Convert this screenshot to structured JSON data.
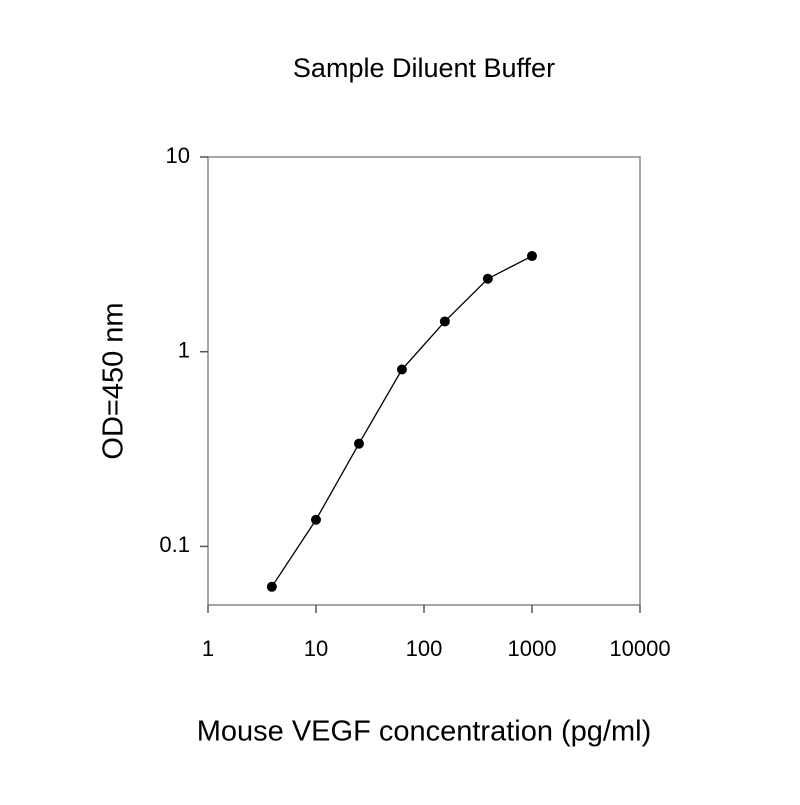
{
  "chart_data": {
    "type": "line",
    "title": "Sample Diluent Buffer",
    "x_label": "Mouse VEGF concentration (pg/ml)",
    "y_label": "OD=450 nm",
    "x": [
      3.9,
      10,
      25,
      62.5,
      156,
      390,
      1000
    ],
    "series": [
      {
        "name": "Sample Diluent Buffer",
        "color": "#000000",
        "values": [
          0.062,
          0.137,
          0.337,
          0.81,
          1.43,
          2.37,
          3.1
        ]
      }
    ],
    "xlim": [
      1,
      10000
    ],
    "ylim": [
      0.05,
      10
    ],
    "xticks": [
      1,
      10,
      100,
      1000,
      10000
    ],
    "yticks": [
      0.1,
      1,
      10
    ],
    "x_log": true,
    "y_log": true,
    "grid": false
  }
}
